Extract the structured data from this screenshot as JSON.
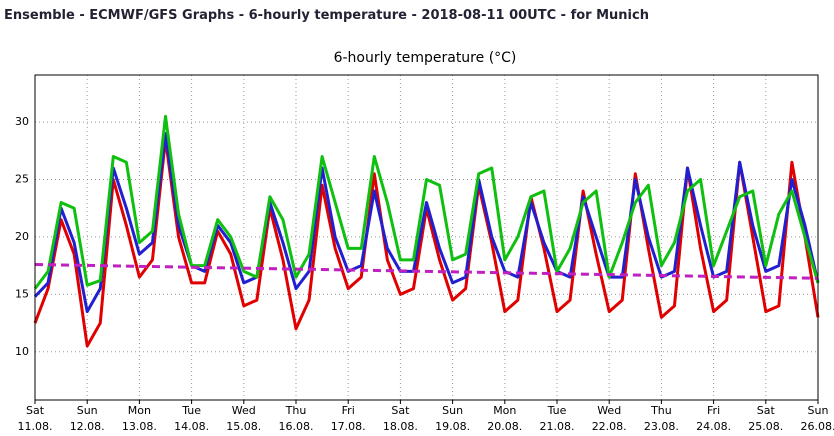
{
  "header": "Ensemble - ECMWF/GFS Graphs - 6-hourly temperature - 2018-08-11 00UTC - for Munich",
  "chart_data": {
    "type": "line",
    "title": "6-hourly temperature (°C)",
    "xlim": [
      0,
      360
    ],
    "xticks": [
      {
        "value": 0,
        "label": [
          "Sat",
          "11.08."
        ]
      },
      {
        "value": 24,
        "label": [
          "Sun",
          "12.08."
        ]
      },
      {
        "value": 48,
        "label": [
          "Mon",
          "13.08."
        ]
      },
      {
        "value": 72,
        "label": [
          "Tue",
          "14.08."
        ]
      },
      {
        "value": 96,
        "label": [
          "Wed",
          "15.08."
        ]
      },
      {
        "value": 120,
        "label": [
          "Thu",
          "16.08."
        ]
      },
      {
        "value": 144,
        "label": [
          "Fri",
          "17.08."
        ]
      },
      {
        "value": 168,
        "label": [
          "Sat",
          "18.08."
        ]
      },
      {
        "value": 192,
        "label": [
          "Sun",
          "19.08."
        ]
      },
      {
        "value": 216,
        "label": [
          "Mon",
          "20.08."
        ]
      },
      {
        "value": 240,
        "label": [
          "Tue",
          "21.08."
        ]
      },
      {
        "value": 264,
        "label": [
          "Wed",
          "22.08."
        ]
      },
      {
        "value": 288,
        "label": [
          "Thu",
          "23.08."
        ]
      },
      {
        "value": 312,
        "label": [
          "Fri",
          "24.08."
        ]
      },
      {
        "value": 336,
        "label": [
          "Sat",
          "25.08."
        ]
      },
      {
        "value": 360,
        "label": [
          "Sun",
          "26.08."
        ]
      }
    ],
    "ylim": [
      5.8,
      34.1
    ],
    "yticks": [
      10,
      15,
      20,
      25,
      30
    ],
    "grid": true,
    "x": [
      0,
      6,
      12,
      18,
      24,
      30,
      36,
      42,
      48,
      54,
      60,
      66,
      72,
      78,
      84,
      90,
      96,
      102,
      108,
      114,
      120,
      126,
      132,
      138,
      144,
      150,
      156,
      162,
      168,
      174,
      180,
      186,
      192,
      198,
      204,
      210,
      216,
      222,
      228,
      234,
      240,
      246,
      252,
      258,
      264,
      270,
      276,
      282,
      288,
      294,
      300,
      306,
      312,
      318,
      324,
      330,
      336,
      342,
      348,
      354,
      360
    ],
    "series": [
      {
        "color": "#e00000",
        "width": 3,
        "values": [
          12.5,
          15.5,
          21.5,
          18.5,
          10.5,
          12.5,
          25,
          21,
          16.5,
          18,
          28.5,
          20,
          16,
          16,
          20.5,
          18.5,
          14,
          14.5,
          22.5,
          18,
          12,
          14.5,
          24.5,
          19,
          15.5,
          16.5,
          25.5,
          18,
          15,
          15.5,
          22.5,
          18,
          14.5,
          15.5,
          24.5,
          19.5,
          13.5,
          14.5,
          23.5,
          19,
          13.5,
          14.5,
          24,
          18.5,
          13.5,
          14.5,
          25.5,
          19,
          13,
          14,
          26,
          19,
          13.5,
          14.5,
          26.5,
          20,
          13.5,
          14,
          26.5,
          20,
          13
        ]
      },
      {
        "color": "#2020d0",
        "width": 3,
        "values": [
          14.8,
          16,
          22.5,
          19.5,
          13.5,
          15.5,
          26,
          22.5,
          18.5,
          19.5,
          29,
          21,
          17.5,
          17,
          21,
          19.5,
          16,
          16.5,
          23,
          19.5,
          15.5,
          17,
          26,
          20,
          17,
          17.5,
          24,
          19,
          17,
          17,
          23,
          19,
          16,
          16.5,
          25,
          20,
          17,
          16.5,
          23,
          19.5,
          17,
          16.5,
          23.5,
          20,
          16.5,
          16.5,
          25,
          20,
          16.5,
          17,
          26,
          21,
          16.5,
          17,
          26.5,
          21,
          17,
          17.5,
          25,
          21,
          16
        ]
      },
      {
        "color": "#10c010",
        "width": 3,
        "values": [
          15.5,
          17,
          23,
          22.5,
          15.8,
          16.2,
          27,
          26.5,
          19.5,
          20.5,
          30.5,
          22,
          17.5,
          17.5,
          21.5,
          20,
          17,
          16.5,
          23.5,
          21.5,
          16.5,
          18.5,
          27,
          23,
          19,
          19,
          27,
          23,
          18,
          18,
          25,
          24.5,
          18,
          18.5,
          25.5,
          26,
          18,
          20,
          23.5,
          24,
          17,
          19,
          23,
          24,
          16.5,
          19.5,
          23,
          24.5,
          17.5,
          19.5,
          24,
          25,
          17.5,
          20.5,
          23.5,
          24,
          17.5,
          22,
          24,
          20,
          16
        ]
      },
      {
        "color": "#c020c0",
        "width": 3,
        "dashed": true,
        "x": [
          0,
          360
        ],
        "values": [
          17.6,
          16.4
        ]
      }
    ]
  }
}
